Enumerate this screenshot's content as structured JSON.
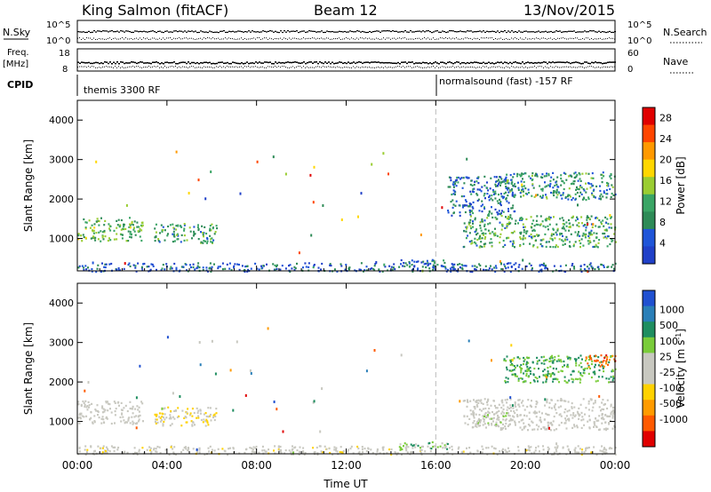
{
  "header": {
    "station": "King Salmon (fitACF)",
    "beam": "Beam 12",
    "date": "13/Nov/2015"
  },
  "strip_panels": {
    "nsky_label": "N.Sky",
    "nsearch_label": "N.Search",
    "nsky_ticks": [
      "10^5",
      "10^0"
    ],
    "nsearch_ticks": [
      "10^5",
      "10^0"
    ],
    "freq_label": "Freq.",
    "freq_unit": "[MHz]",
    "freq_ticks": [
      "18",
      "8"
    ],
    "nave_label": "Nave",
    "nave_ticks": [
      "60",
      "0"
    ],
    "cpid_label": "CPID",
    "cpid_modes": [
      {
        "label": "themis 3300 RF",
        "start_hour": 0
      },
      {
        "label": "normalsound (fast) -157 RF",
        "start_hour": 16
      }
    ]
  },
  "colors": {
    "power_scale": [
      "#2040c8",
      "#1f55d8",
      "#2e8b57",
      "#3aa565",
      "#9acd32",
      "#ffd700",
      "#ff9900",
      "#ff4500",
      "#e00000"
    ],
    "velocity_scale": [
      "#2050d0",
      "#2a7fb8",
      "#1f8e60",
      "#7acc3a",
      "#c8c8c0",
      "#c8c8c0",
      "#ffd200",
      "#ff9b00",
      "#ff5a00",
      "#e00000"
    ]
  },
  "chart_data": [
    {
      "type": "heatmap",
      "id": "power",
      "ylabel": "Slant Range [km]",
      "xlabel": "",
      "x_ticks": [
        "00:00",
        "04:00",
        "08:00",
        "12:00",
        "16:00",
        "20:00",
        "00:00"
      ],
      "y_ticks": [
        "1000",
        "2000",
        "3000",
        "4000"
      ],
      "xlim_hours": [
        0,
        24
      ],
      "ylim_km": [
        180,
        4500
      ],
      "colorbar": {
        "label": "Power [dB]",
        "ticks": [
          "4",
          "8",
          "12",
          "16",
          "20",
          "24",
          "28"
        ],
        "range": [
          0,
          30
        ]
      },
      "regions": [
        {
          "t0": 0.0,
          "t1": 2.9,
          "r0": 950,
          "r1": 1550,
          "value": 12
        },
        {
          "t0": 3.4,
          "t1": 6.2,
          "r0": 900,
          "r1": 1400,
          "value": 10
        },
        {
          "t0": 14.3,
          "t1": 16.5,
          "r0": 300,
          "r1": 500,
          "value": 8
        },
        {
          "t0": 17.2,
          "t1": 24.0,
          "r0": 800,
          "r1": 1600,
          "value": 11
        },
        {
          "t0": 16.5,
          "t1": 19.5,
          "r0": 1600,
          "r1": 2600,
          "value": 6
        },
        {
          "t0": 19.0,
          "t1": 24.0,
          "r0": 2000,
          "r1": 2700,
          "value": 9
        },
        {
          "t0": 0.0,
          "t1": 24.0,
          "r0": 180,
          "r1": 400,
          "value": 5
        }
      ],
      "vertical_marker_hour": 16
    },
    {
      "type": "heatmap",
      "id": "velocity",
      "ylabel": "Slant Range [km]",
      "xlabel": "Time UT",
      "x_ticks": [
        "00:00",
        "04:00",
        "08:00",
        "12:00",
        "16:00",
        "20:00",
        "00:00"
      ],
      "y_ticks": [
        "1000",
        "2000",
        "3000",
        "4000"
      ],
      "xlim_hours": [
        0,
        24
      ],
      "ylim_km": [
        180,
        4500
      ],
      "colorbar": {
        "label": "Velocity [m s",
        "label_superscript": "-1",
        "label_close": "]",
        "ticks": [
          "1000",
          "500",
          "100",
          "25",
          "-25",
          "-100",
          "-500",
          "-1000"
        ],
        "range": [
          -1000,
          1000
        ]
      },
      "regions": [
        {
          "t0": 0.0,
          "t1": 2.9,
          "r0": 950,
          "r1": 1550,
          "value": 0
        },
        {
          "t0": 3.4,
          "t1": 6.2,
          "r0": 900,
          "r1": 1400,
          "value": -150
        },
        {
          "t0": 14.3,
          "t1": 16.5,
          "r0": 300,
          "r1": 500,
          "value": 300
        },
        {
          "t0": 17.2,
          "t1": 24.0,
          "r0": 800,
          "r1": 1600,
          "value": 0
        },
        {
          "t0": 17.8,
          "t1": 19.2,
          "r0": 900,
          "r1": 1300,
          "value": 150
        },
        {
          "t0": 19.0,
          "t1": 24.0,
          "r0": 2000,
          "r1": 2700,
          "value": 400
        },
        {
          "t0": 22.5,
          "t1": 24.0,
          "r0": 2400,
          "r1": 2700,
          "value": -700
        },
        {
          "t0": 0.0,
          "t1": 24.0,
          "r0": 180,
          "r1": 400,
          "value": -60
        }
      ],
      "vertical_marker_hour": 16
    }
  ]
}
